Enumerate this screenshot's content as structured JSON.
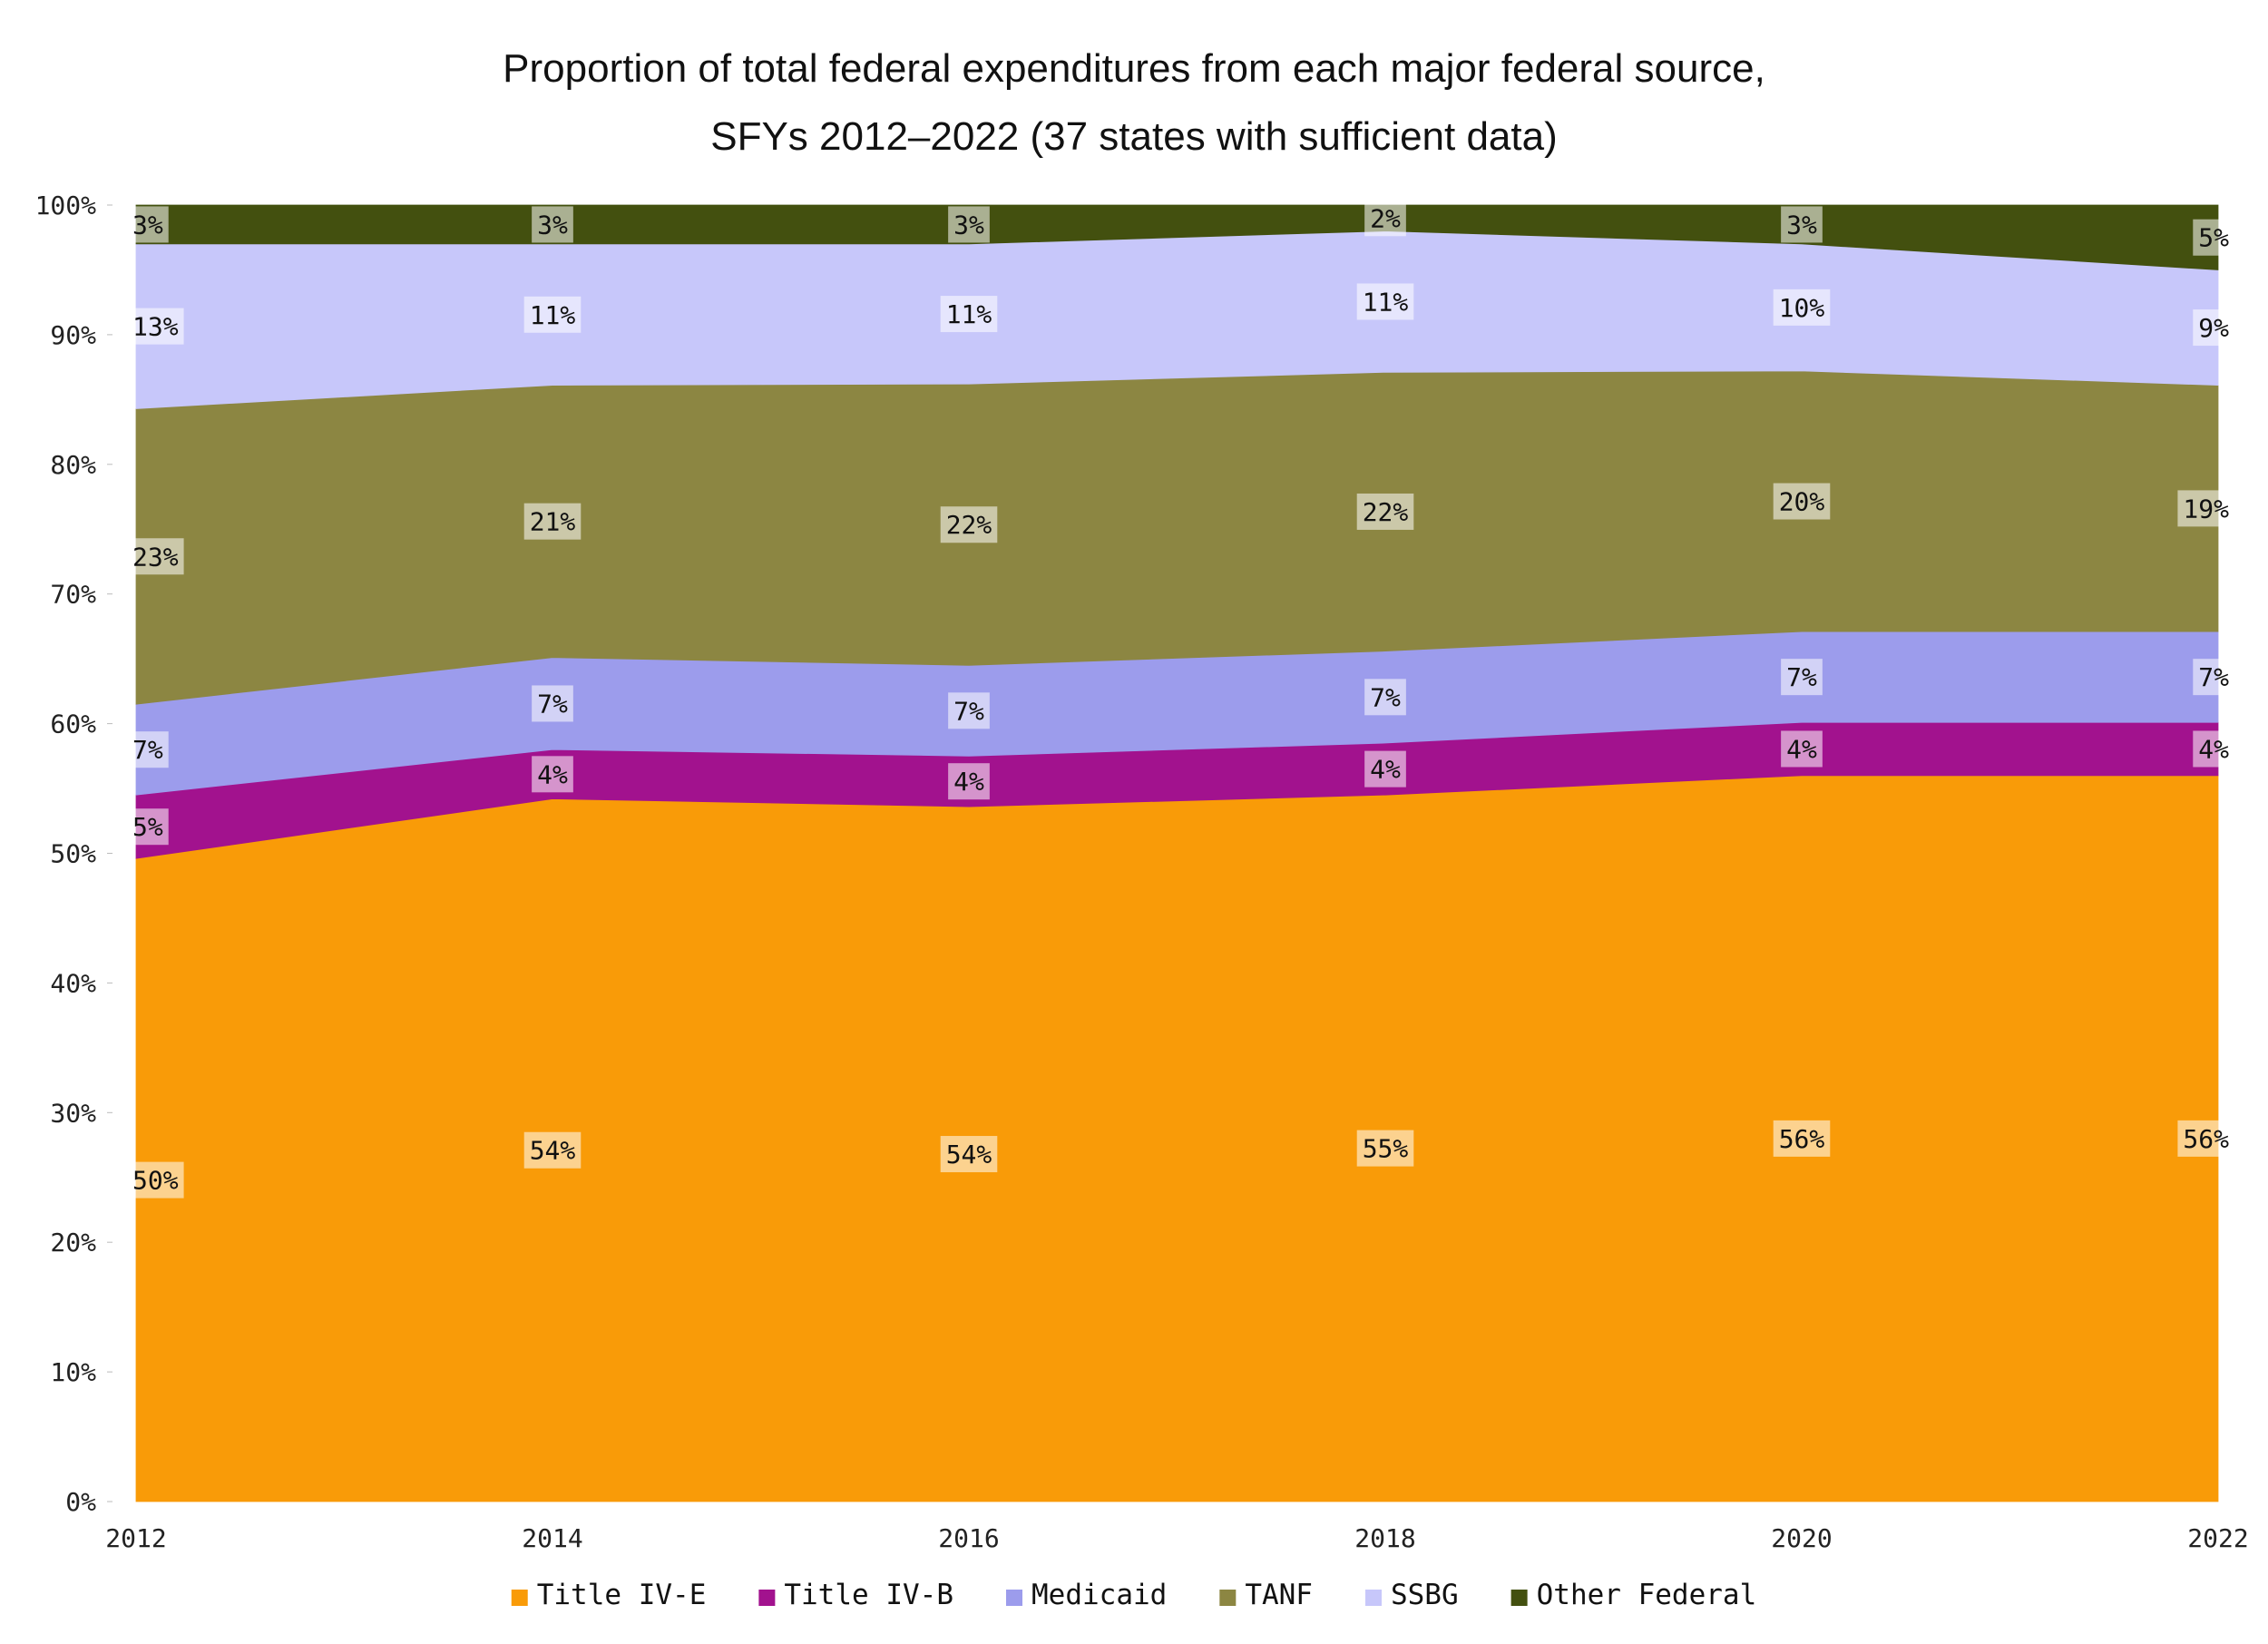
{
  "chart_data": {
    "type": "area",
    "stacked": true,
    "normalized": true,
    "title_lines": [
      "Proportion of total federal expenditures from each major federal source,",
      "SFYs 2012–2022 (37 states with sufficient data)"
    ],
    "x": [
      2012,
      2014,
      2016,
      2018,
      2020,
      2022
    ],
    "x_tick_labels": [
      "2012",
      "2014",
      "2016",
      "2018",
      "2020",
      "2022"
    ],
    "y_tick_labels": [
      "0%",
      "10%",
      "20%",
      "30%",
      "40%",
      "50%",
      "60%",
      "70%",
      "80%",
      "90%",
      "100%"
    ],
    "ylim": [
      0,
      100
    ],
    "legend_position": "bottom",
    "series": [
      {
        "name": "Title IV-E",
        "color": "#F99B08",
        "values": [
          49.6,
          54.2,
          53.6,
          54.5,
          56.0,
          56.0
        ],
        "labels": [
          "50%",
          "54%",
          "54%",
          "55%",
          "56%",
          "56%"
        ]
      },
      {
        "name": "Title IV-B",
        "color": "#A2128E",
        "values": [
          4.9,
          3.8,
          3.9,
          4.0,
          4.1,
          4.1
        ],
        "labels": [
          "5%",
          "4%",
          "4%",
          "4%",
          "4%",
          "4%"
        ]
      },
      {
        "name": "Medicaid",
        "color": "#9C9CEC",
        "values": [
          7.0,
          7.1,
          7.0,
          7.1,
          7.0,
          7.0
        ],
        "labels": [
          "7%",
          "7%",
          "7%",
          "7%",
          "7%",
          "7%"
        ]
      },
      {
        "name": "TANF",
        "color": "#8C8642",
        "values": [
          22.8,
          21.0,
          21.7,
          21.5,
          20.1,
          19.0
        ],
        "labels": [
          "23%",
          "21%",
          "22%",
          "22%",
          "20%",
          "19%"
        ]
      },
      {
        "name": "SSBG",
        "color": "#C7C7FA",
        "values": [
          12.7,
          10.9,
          10.8,
          10.9,
          9.8,
          8.9
        ],
        "labels": [
          "13%",
          "11%",
          "11%",
          "11%",
          "10%",
          "9%"
        ]
      },
      {
        "name": "Other Federal",
        "color": "#43500F",
        "values": [
          3.0,
          3.0,
          3.0,
          2.0,
          3.0,
          5.0
        ],
        "labels": [
          "3%",
          "3%",
          "3%",
          "2%",
          "3%",
          "5%"
        ]
      }
    ]
  }
}
